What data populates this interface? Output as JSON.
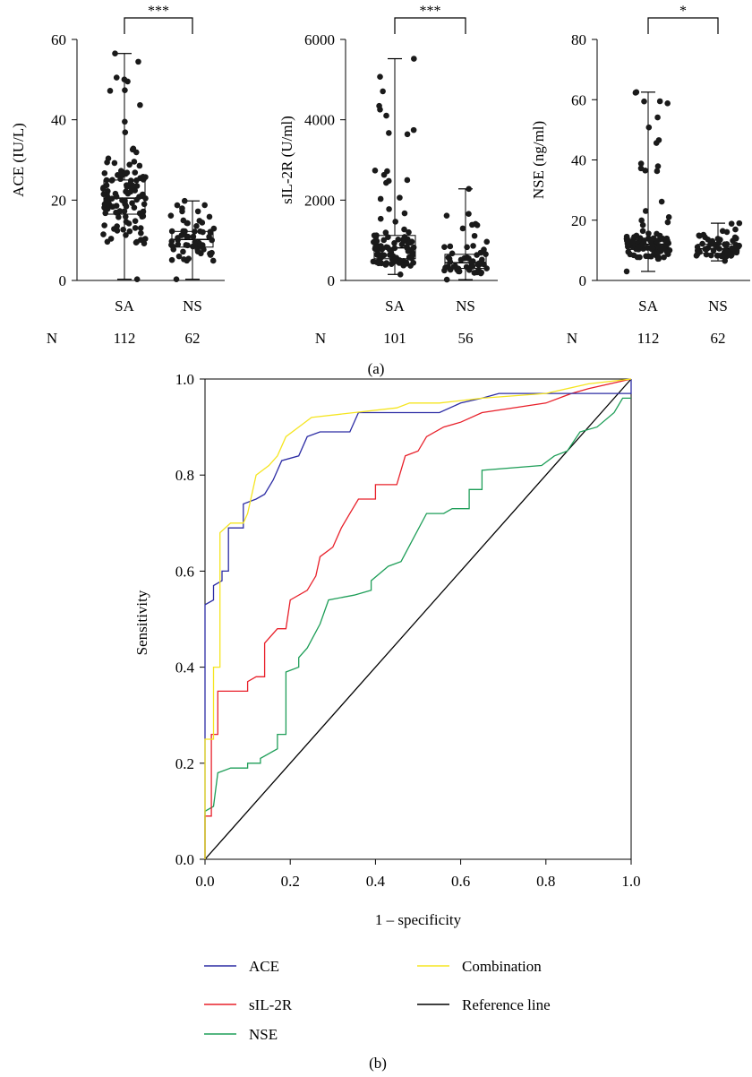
{
  "figure": {
    "panel_a_label": "(a)",
    "panel_b_label": "(b)",
    "n_row_label": "N"
  },
  "chart_data": [
    {
      "type": "box",
      "panel": "a",
      "ylabel": "ACE (IU/L)",
      "ylim": [
        0,
        60
      ],
      "yticks": [
        0,
        20,
        40,
        60
      ],
      "categories": [
        "SA",
        "NS"
      ],
      "n": [
        112,
        62
      ],
      "significance": "***",
      "groups": [
        {
          "name": "SA",
          "min": 0.3,
          "q1": 16.5,
          "median": 20.5,
          "q3": 25.0,
          "max": 56.5
        },
        {
          "name": "NS",
          "min": 0.3,
          "q1": 8.3,
          "median": 10.2,
          "q3": 12.2,
          "max": 19.8
        }
      ]
    },
    {
      "type": "box",
      "panel": "a",
      "ylabel": "sIL-2R (U/ml)",
      "ylim": [
        0,
        6000
      ],
      "yticks": [
        0,
        2000,
        4000,
        6000
      ],
      "categories": [
        "SA",
        "NS"
      ],
      "n": [
        101,
        56
      ],
      "significance": "***",
      "groups": [
        {
          "name": "SA",
          "min": 150,
          "q1": 540,
          "median": 810,
          "q3": 1120,
          "max": 5520
        },
        {
          "name": "NS",
          "min": 20,
          "q1": 300,
          "median": 440,
          "q3": 650,
          "max": 2280
        }
      ]
    },
    {
      "type": "box",
      "panel": "a",
      "ylabel": "NSE (ng/ml)",
      "ylim": [
        0,
        80
      ],
      "yticks": [
        0,
        20,
        40,
        60,
        80
      ],
      "categories": [
        "SA",
        "NS"
      ],
      "n": [
        112,
        62
      ],
      "significance": "*",
      "groups": [
        {
          "name": "SA",
          "min": 3,
          "q1": 10.3,
          "median": 12.0,
          "q3": 14.0,
          "max": 62.5
        },
        {
          "name": "NS",
          "min": 6.5,
          "q1": 9.0,
          "median": 10.5,
          "q3": 12.0,
          "max": 19.0
        }
      ]
    },
    {
      "type": "line",
      "panel": "b",
      "xlabel": "1 – specificity",
      "ylabel": "Sensitivity",
      "xlim": [
        0,
        1
      ],
      "ylim": [
        0,
        1
      ],
      "xticks": [
        "0.0",
        "0.2",
        "0.4",
        "0.6",
        "0.8",
        "1.0"
      ],
      "yticks": [
        "0.0",
        "0.2",
        "0.4",
        "0.6",
        "0.8",
        "1.0"
      ],
      "legend_position": "bottom",
      "series": [
        {
          "name": "ACE",
          "color": "#2c2ca4",
          "points": [
            [
              0,
              0
            ],
            [
              0,
              0.53
            ],
            [
              0.02,
              0.54
            ],
            [
              0.02,
              0.57
            ],
            [
              0.04,
              0.58
            ],
            [
              0.04,
              0.6
            ],
            [
              0.055,
              0.6
            ],
            [
              0.055,
              0.69
            ],
            [
              0.09,
              0.69
            ],
            [
              0.09,
              0.74
            ],
            [
              0.12,
              0.75
            ],
            [
              0.14,
              0.76
            ],
            [
              0.16,
              0.79
            ],
            [
              0.18,
              0.83
            ],
            [
              0.22,
              0.84
            ],
            [
              0.24,
              0.88
            ],
            [
              0.27,
              0.89
            ],
            [
              0.34,
              0.89
            ],
            [
              0.36,
              0.93
            ],
            [
              0.55,
              0.93
            ],
            [
              0.6,
              0.95
            ],
            [
              0.65,
              0.96
            ],
            [
              0.69,
              0.97
            ],
            [
              0.8,
              0.97
            ],
            [
              1.0,
              0.97
            ],
            [
              1.0,
              1.0
            ]
          ]
        },
        {
          "name": "sIL-2R",
          "color": "#e8202a",
          "points": [
            [
              0,
              0
            ],
            [
              0,
              0.09
            ],
            [
              0.015,
              0.09
            ],
            [
              0.015,
              0.26
            ],
            [
              0.03,
              0.26
            ],
            [
              0.03,
              0.35
            ],
            [
              0.1,
              0.35
            ],
            [
              0.1,
              0.37
            ],
            [
              0.12,
              0.38
            ],
            [
              0.14,
              0.38
            ],
            [
              0.14,
              0.45
            ],
            [
              0.17,
              0.48
            ],
            [
              0.19,
              0.48
            ],
            [
              0.2,
              0.54
            ],
            [
              0.24,
              0.56
            ],
            [
              0.26,
              0.59
            ],
            [
              0.27,
              0.63
            ],
            [
              0.3,
              0.65
            ],
            [
              0.32,
              0.69
            ],
            [
              0.34,
              0.72
            ],
            [
              0.36,
              0.75
            ],
            [
              0.4,
              0.75
            ],
            [
              0.4,
              0.78
            ],
            [
              0.45,
              0.78
            ],
            [
              0.47,
              0.84
            ],
            [
              0.5,
              0.85
            ],
            [
              0.52,
              0.88
            ],
            [
              0.56,
              0.9
            ],
            [
              0.6,
              0.91
            ],
            [
              0.65,
              0.93
            ],
            [
              0.8,
              0.95
            ],
            [
              0.86,
              0.97
            ],
            [
              0.9,
              0.98
            ],
            [
              1.0,
              1.0
            ]
          ]
        },
        {
          "name": "NSE",
          "color": "#1e9e58",
          "points": [
            [
              0,
              0
            ],
            [
              0,
              0.1
            ],
            [
              0.02,
              0.11
            ],
            [
              0.03,
              0.18
            ],
            [
              0.06,
              0.19
            ],
            [
              0.1,
              0.19
            ],
            [
              0.1,
              0.2
            ],
            [
              0.13,
              0.2
            ],
            [
              0.13,
              0.21
            ],
            [
              0.17,
              0.23
            ],
            [
              0.17,
              0.26
            ],
            [
              0.19,
              0.26
            ],
            [
              0.19,
              0.39
            ],
            [
              0.22,
              0.4
            ],
            [
              0.22,
              0.42
            ],
            [
              0.24,
              0.44
            ],
            [
              0.27,
              0.49
            ],
            [
              0.29,
              0.54
            ],
            [
              0.35,
              0.55
            ],
            [
              0.39,
              0.56
            ],
            [
              0.39,
              0.58
            ],
            [
              0.43,
              0.61
            ],
            [
              0.46,
              0.62
            ],
            [
              0.49,
              0.67
            ],
            [
              0.52,
              0.72
            ],
            [
              0.56,
              0.72
            ],
            [
              0.58,
              0.73
            ],
            [
              0.62,
              0.73
            ],
            [
              0.62,
              0.77
            ],
            [
              0.65,
              0.77
            ],
            [
              0.65,
              0.81
            ],
            [
              0.79,
              0.82
            ],
            [
              0.82,
              0.84
            ],
            [
              0.85,
              0.85
            ],
            [
              0.88,
              0.89
            ],
            [
              0.92,
              0.9
            ],
            [
              0.96,
              0.93
            ],
            [
              0.98,
              0.96
            ],
            [
              1.0,
              0.96
            ]
          ]
        },
        {
          "name": "Combination",
          "color": "#f5e520",
          "points": [
            [
              0,
              0
            ],
            [
              0,
              0.25
            ],
            [
              0.02,
              0.25
            ],
            [
              0.02,
              0.4
            ],
            [
              0.035,
              0.4
            ],
            [
              0.035,
              0.68
            ],
            [
              0.06,
              0.7
            ],
            [
              0.09,
              0.7
            ],
            [
              0.1,
              0.72
            ],
            [
              0.12,
              0.8
            ],
            [
              0.15,
              0.82
            ],
            [
              0.17,
              0.84
            ],
            [
              0.19,
              0.88
            ],
            [
              0.22,
              0.9
            ],
            [
              0.25,
              0.92
            ],
            [
              0.35,
              0.93
            ],
            [
              0.45,
              0.94
            ],
            [
              0.48,
              0.95
            ],
            [
              0.55,
              0.95
            ],
            [
              0.65,
              0.96
            ],
            [
              0.8,
              0.97
            ],
            [
              0.9,
              0.99
            ],
            [
              1.0,
              1.0
            ]
          ]
        },
        {
          "name": "Reference line",
          "color": "#000000",
          "points": [
            [
              0,
              0
            ],
            [
              1,
              1
            ]
          ]
        }
      ]
    }
  ]
}
